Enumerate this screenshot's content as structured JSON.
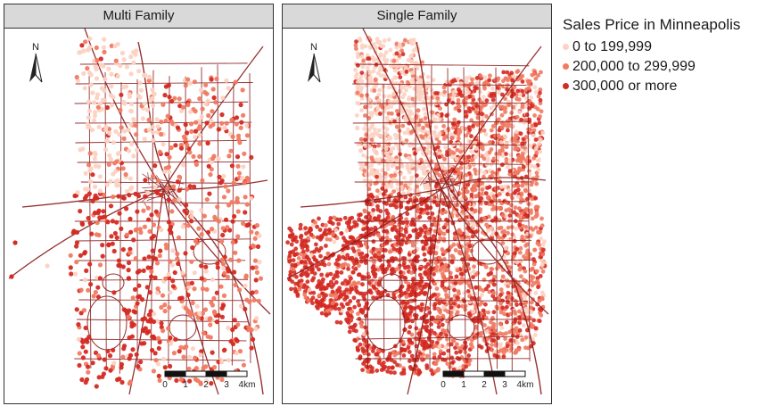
{
  "panels": [
    {
      "title": "Multi Family",
      "density": "sparse"
    },
    {
      "title": "Single Family",
      "density": "dense"
    }
  ],
  "legend": {
    "title": "Sales Price in Minneapolis",
    "items": [
      {
        "label": "0 to 199,999",
        "color": "#fcd2c2"
      },
      {
        "label": "200,000 to 299,999",
        "color": "#f07a62"
      },
      {
        "label": "300,000 or more",
        "color": "#d42a22"
      }
    ]
  },
  "north_label": "N",
  "scale_bar": {
    "ticks": [
      "0",
      "1",
      "2",
      "3",
      "4km"
    ]
  },
  "colors": {
    "road": "#8b1a1a",
    "frame": "#333333",
    "header_bg": "#d9d9d9"
  }
}
